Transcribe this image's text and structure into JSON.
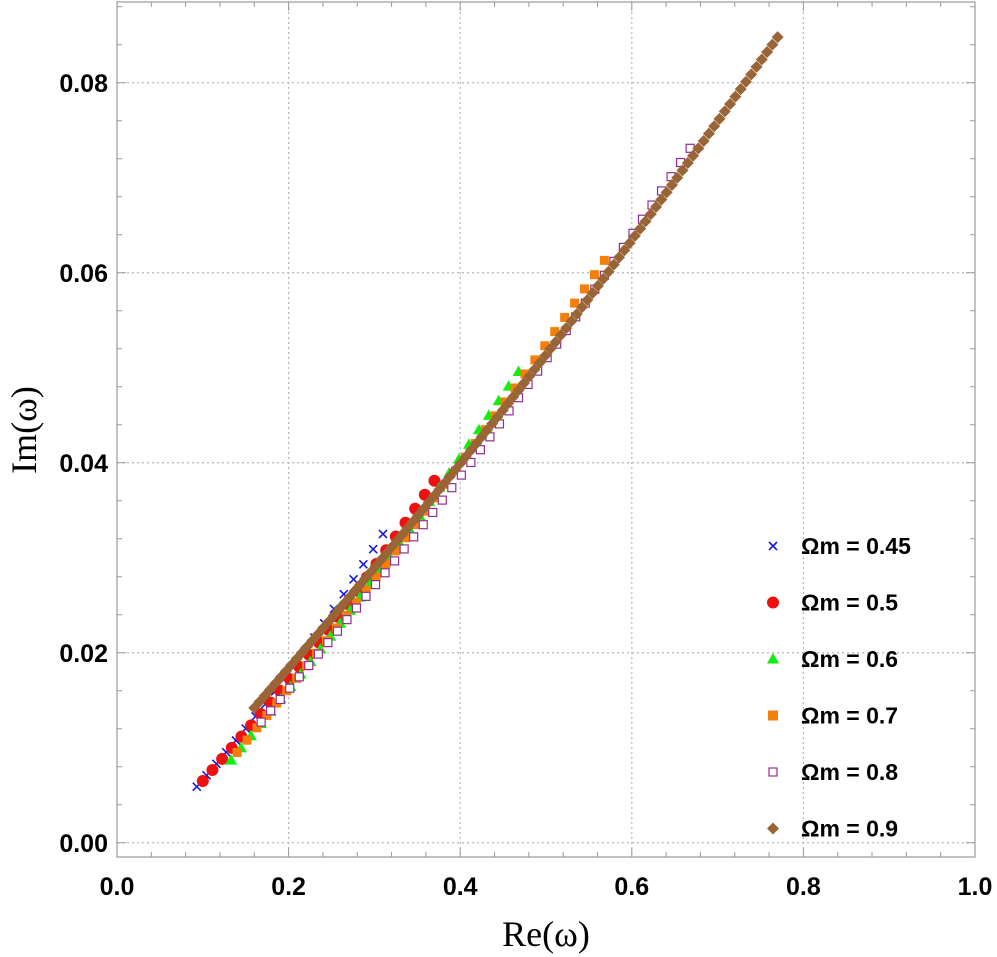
{
  "chart_data": {
    "type": "scatter",
    "xlabel": "Re(ω)",
    "ylabel": "Im(ω)",
    "xlim": [
      0.0,
      1.0
    ],
    "ylim": [
      -0.0015,
      0.0885
    ],
    "x_ticks": [
      "0.0",
      "0.2",
      "0.4",
      "0.6",
      "0.8",
      "1.0"
    ],
    "x_tick_values": [
      0.0,
      0.2,
      0.4,
      0.6,
      0.8,
      1.0
    ],
    "y_ticks": [
      "0.00",
      "0.02",
      "0.04",
      "0.06",
      "0.08"
    ],
    "y_tick_values": [
      0.0,
      0.02,
      0.04,
      0.06,
      0.08
    ],
    "grid": true,
    "legend_position": "right",
    "series": [
      {
        "name": "Ωm = 0.45",
        "marker": "cross",
        "color": "#1a1adb",
        "x_start": 0.093,
        "y_start": 0.0059,
        "x_end": 0.31,
        "y_end": 0.0325,
        "n": 20
      },
      {
        "name": "Ωm = 0.5",
        "marker": "circle",
        "color": "#ee1111",
        "x_start": 0.1,
        "y_start": 0.0065,
        "x_end": 0.37,
        "y_end": 0.0381,
        "n": 25
      },
      {
        "name": "Ωm = 0.6",
        "marker": "triangle",
        "color": "#11ee11",
        "x_start": 0.133,
        "y_start": 0.0087,
        "x_end": 0.468,
        "y_end": 0.0496,
        "n": 30
      },
      {
        "name": "Ωm = 0.7",
        "marker": "square",
        "color": "#f57f0c",
        "x_start": 0.14,
        "y_start": 0.0095,
        "x_end": 0.568,
        "y_end": 0.0613,
        "n": 38
      },
      {
        "name": "Ωm = 0.8",
        "marker": "open-square",
        "color": "#8e2e94",
        "x_start": 0.168,
        "y_start": 0.0127,
        "x_end": 0.668,
        "y_end": 0.0731,
        "n": 46
      },
      {
        "name": "Ωm = 0.9",
        "marker": "diamond",
        "color": "#9a6536",
        "x_start": 0.16,
        "y_start": 0.0142,
        "x_end": 0.77,
        "y_end": 0.0848,
        "n": 100
      }
    ]
  }
}
